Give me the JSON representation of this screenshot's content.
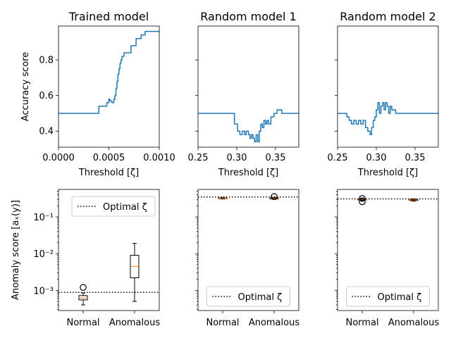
{
  "chart_data": [
    {
      "type": "line",
      "title": "Trained model",
      "xlabel": "Threshold [ζ]",
      "ylabel": "Accuracy score",
      "xlim": [
        0,
        0.001
      ],
      "ylim": [
        0.31,
        0.99
      ],
      "xticks": [
        0,
        0.0005,
        0.001
      ],
      "xtick_labels": [
        "0.0000",
        "0.0005",
        "0.0010"
      ],
      "yticks": [
        0.4,
        0.6,
        0.8
      ],
      "ytick_labels": [
        "0.4",
        "0.6",
        "0.8"
      ],
      "color": "#1f77b4",
      "x": [
        0,
        0.0004,
        0.0004,
        0.00048,
        0.00048,
        0.0005,
        0.0005,
        0.00051,
        0.00051,
        0.00053,
        0.00053,
        0.00055,
        0.00055,
        0.00056,
        0.00056,
        0.00057,
        0.00057,
        0.00058,
        0.00058,
        0.00059,
        0.00059,
        0.0006,
        0.0006,
        0.00061,
        0.00061,
        0.00062,
        0.00062,
        0.00063,
        0.00063,
        0.00064,
        0.00064,
        0.00065,
        0.00065,
        0.00066,
        0.00066,
        0.00067,
        0.00067,
        0.00072,
        0.00072,
        0.00075,
        0.00075,
        0.00077,
        0.00077,
        0.00082,
        0.00082,
        0.00086,
        0.00086,
        0.00088,
        0.00088,
        0.001
      ],
      "y": [
        0.5,
        0.5,
        0.54,
        0.54,
        0.56,
        0.56,
        0.58,
        0.58,
        0.57,
        0.57,
        0.56,
        0.56,
        0.58,
        0.58,
        0.6,
        0.6,
        0.64,
        0.64,
        0.68,
        0.68,
        0.72,
        0.72,
        0.75,
        0.75,
        0.78,
        0.78,
        0.8,
        0.8,
        0.82,
        0.82,
        0.82,
        0.82,
        0.84,
        0.84,
        0.84,
        0.84,
        0.84,
        0.84,
        0.88,
        0.88,
        0.88,
        0.88,
        0.92,
        0.92,
        0.94,
        0.94,
        0.96,
        0.96,
        0.96,
        0.96
      ]
    },
    {
      "type": "line",
      "title": "Random model 1",
      "xlabel": "Threshold [ζ]",
      "ylabel": "",
      "xlim": [
        0.25,
        0.38
      ],
      "ylim": [
        0.31,
        0.99
      ],
      "xticks": [
        0.25,
        0.3,
        0.35
      ],
      "xtick_labels": [
        "0.25",
        "0.30",
        "0.35"
      ],
      "yticks": [
        0.4,
        0.6,
        0.8
      ],
      "ytick_labels": [],
      "color": "#1f77b4",
      "x": [
        0.25,
        0.297,
        0.297,
        0.301,
        0.301,
        0.304,
        0.304,
        0.307,
        0.307,
        0.31,
        0.31,
        0.312,
        0.312,
        0.315,
        0.315,
        0.317,
        0.317,
        0.319,
        0.319,
        0.321,
        0.321,
        0.323,
        0.323,
        0.325,
        0.325,
        0.327,
        0.327,
        0.329,
        0.329,
        0.331,
        0.331,
        0.333,
        0.333,
        0.335,
        0.335,
        0.337,
        0.337,
        0.339,
        0.339,
        0.341,
        0.341,
        0.344,
        0.344,
        0.348,
        0.348,
        0.352,
        0.352,
        0.358,
        0.358,
        0.38
      ],
      "y": [
        0.5,
        0.5,
        0.44,
        0.44,
        0.4,
        0.4,
        0.38,
        0.38,
        0.4,
        0.4,
        0.38,
        0.38,
        0.4,
        0.4,
        0.38,
        0.38,
        0.36,
        0.36,
        0.38,
        0.38,
        0.36,
        0.36,
        0.34,
        0.34,
        0.38,
        0.38,
        0.34,
        0.34,
        0.4,
        0.4,
        0.44,
        0.44,
        0.42,
        0.42,
        0.46,
        0.46,
        0.44,
        0.44,
        0.46,
        0.46,
        0.44,
        0.44,
        0.48,
        0.48,
        0.5,
        0.5,
        0.52,
        0.52,
        0.5,
        0.5
      ]
    },
    {
      "type": "line",
      "title": "Random model 2",
      "xlabel": "Threshold [ζ]",
      "ylabel": "",
      "xlim": [
        0.25,
        0.38
      ],
      "ylim": [
        0.31,
        0.99
      ],
      "xticks": [
        0.25,
        0.3,
        0.35
      ],
      "xtick_labels": [
        "0.25",
        "0.30",
        "0.35"
      ],
      "yticks": [
        0.4,
        0.6,
        0.8
      ],
      "ytick_labels": [],
      "color": "#1f77b4",
      "x": [
        0.25,
        0.262,
        0.262,
        0.265,
        0.265,
        0.268,
        0.268,
        0.271,
        0.271,
        0.274,
        0.274,
        0.277,
        0.277,
        0.28,
        0.28,
        0.283,
        0.283,
        0.286,
        0.286,
        0.289,
        0.289,
        0.292,
        0.292,
        0.294,
        0.294,
        0.296,
        0.296,
        0.298,
        0.298,
        0.3,
        0.3,
        0.302,
        0.302,
        0.304,
        0.304,
        0.306,
        0.306,
        0.308,
        0.308,
        0.31,
        0.31,
        0.312,
        0.312,
        0.314,
        0.314,
        0.316,
        0.316,
        0.318,
        0.318,
        0.32,
        0.32,
        0.325,
        0.325,
        0.38
      ],
      "y": [
        0.5,
        0.5,
        0.48,
        0.48,
        0.46,
        0.46,
        0.44,
        0.44,
        0.46,
        0.46,
        0.44,
        0.44,
        0.46,
        0.46,
        0.44,
        0.44,
        0.46,
        0.46,
        0.42,
        0.42,
        0.4,
        0.4,
        0.38,
        0.38,
        0.42,
        0.42,
        0.46,
        0.46,
        0.48,
        0.48,
        0.52,
        0.52,
        0.56,
        0.56,
        0.5,
        0.5,
        0.54,
        0.54,
        0.56,
        0.56,
        0.52,
        0.52,
        0.56,
        0.56,
        0.54,
        0.54,
        0.5,
        0.5,
        0.54,
        0.54,
        0.52,
        0.52,
        0.5,
        0.5
      ]
    },
    {
      "type": "box",
      "xlabel": "",
      "ylabel": "Anomaly score [aₓ(y)]",
      "yscale": "log",
      "ylim_log10": [
        -3.55,
        -0.25
      ],
      "ytick_labels": [
        "10⁻³",
        "10⁻²",
        "10⁻¹"
      ],
      "categories": [
        "Normal",
        "Anomalous"
      ],
      "boxes": [
        {
          "whislo": 0.0004,
          "q1": 0.00055,
          "med": 0.00062,
          "q3": 0.00072,
          "whishi": 0.00085,
          "fliers": [
            0.0012
          ]
        },
        {
          "whislo": 0.0005,
          "q1": 0.0022,
          "med": 0.0045,
          "q3": 0.009,
          "whishi": 0.019,
          "fliers": []
        }
      ],
      "optimal_zeta": 0.00088,
      "legend_label": "Optimal ζ",
      "legend_loc": "upper right"
    },
    {
      "type": "box",
      "xlabel": "",
      "ylabel": "",
      "yscale": "log",
      "ylim_log10": [
        -3.55,
        -0.25
      ],
      "ytick_labels": [],
      "categories": [
        "Normal",
        "Anomalous"
      ],
      "boxes": [
        {
          "whislo": 0.31,
          "q1": 0.32,
          "med": 0.325,
          "q3": 0.33,
          "whishi": 0.34,
          "fliers": []
        },
        {
          "whislo": 0.3,
          "q1": 0.31,
          "med": 0.32,
          "q3": 0.33,
          "whishi": 0.34,
          "fliers": [
            0.36
          ]
        }
      ],
      "optimal_zeta": 0.35,
      "legend_label": "Optimal ζ",
      "legend_loc": "lower center"
    },
    {
      "type": "box",
      "xlabel": "",
      "ylabel": "",
      "yscale": "log",
      "ylim_log10": [
        -3.55,
        -0.25
      ],
      "ytick_labels": [],
      "categories": [
        "Normal",
        "Anomalous"
      ],
      "boxes": [
        {
          "whislo": 0.28,
          "q1": 0.29,
          "med": 0.3,
          "q3": 0.31,
          "whishi": 0.33,
          "fliers": [
            0.26,
            0.32
          ]
        },
        {
          "whislo": 0.27,
          "q1": 0.28,
          "med": 0.29,
          "q3": 0.3,
          "whishi": 0.31,
          "fliers": []
        }
      ],
      "optimal_zeta": 0.31,
      "legend_label": "Optimal ζ",
      "legend_loc": "lower center"
    }
  ]
}
